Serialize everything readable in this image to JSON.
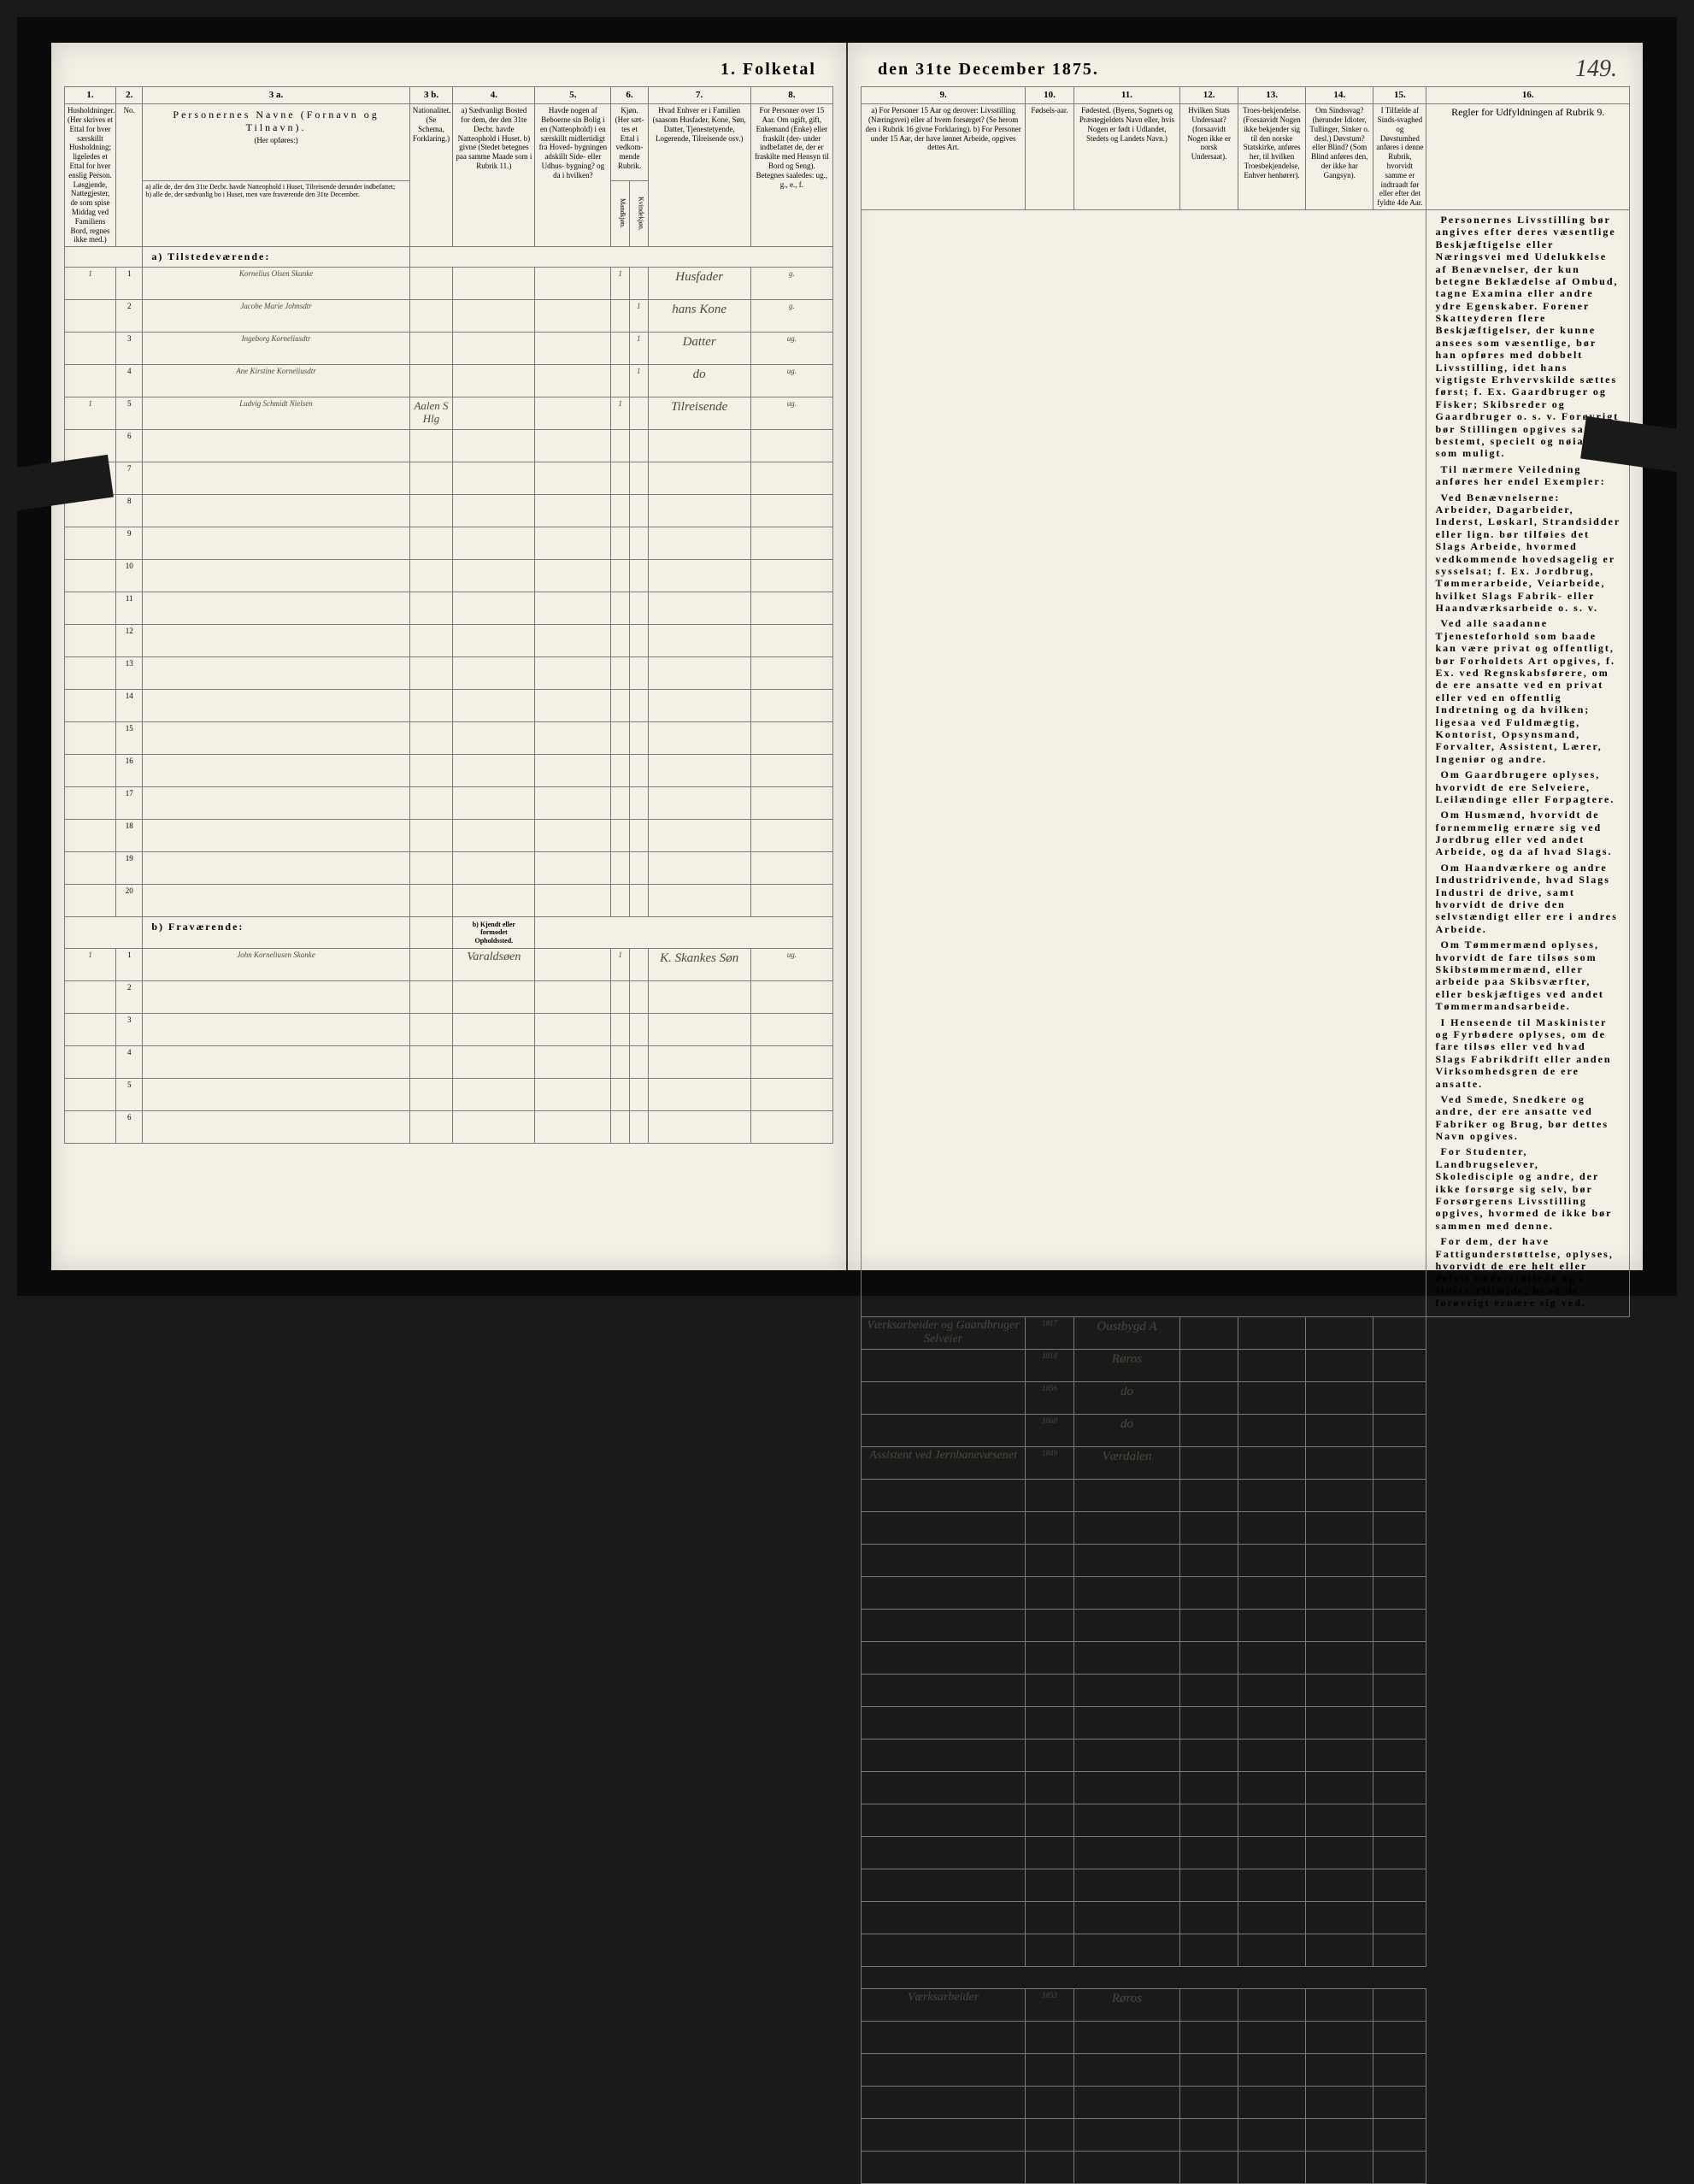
{
  "page_number": "149.",
  "main_title_left": "1. Folketal",
  "main_title_right": "den 31te December 1875.",
  "columns_left": [
    "1.",
    "2.",
    "3 a.",
    "3 b.",
    "4.",
    "5.",
    "6.",
    "7.",
    "8."
  ],
  "columns_right": [
    "9.",
    "10.",
    "11.",
    "12.",
    "13.",
    "14.",
    "15.",
    "16."
  ],
  "headers_left": {
    "c1": "Husholdninger.\n(Her skrives et Ettal for hver særskillt Husholdning; ligeledes et Ettal for hver enslig Person.\nLøsgjende, Nattegjester, de som spise Middag ved Familiens Bord, regnes ikke med.)",
    "c2": "No.",
    "c3a_top": "Personernes Navne (Fornavn og Tilnavn).",
    "c3a_mid": "(Her opføres:)",
    "c3a_a": "a) alle de, der den 31te Decbr. havde Natteophold i Huset, Tilreisende derunder indbefattet;",
    "c3a_b": "b) alle de, der sædvanlig bo i Huset, men vare fraværende den 31te December.",
    "c3b": "Nationalitet.\n(Se Schema, Forklaring.)",
    "c4": "a) Sædvanligt Bosted for dem, der den 31te Decbr. havde Natteophold i Huset.\nb) givne (Stedet betegnes paa samme Maade som i Rubrik 11.)",
    "c5": "Havde nogen af Beboerne sin Bolig i en (Natteophold) i en særskillt midlertidigt fra Hoved- bygningen adskillt Side- eller Udhus- bygning? og da i hvilken?",
    "c6": "Kjøn.\n(Her sæt- tes et Ettal i vedkom- mende Rubrik.",
    "c6a": "Mandkjøn.",
    "c6b": "Kvindekjøn.",
    "c7": "Hvad Enhver er i Familien\n(saasom Husfader, Kone, Søn, Datter, Tjenestetyende, Logerende, Tilreisende osv.)",
    "c8": "For Personer over 15 Aar.\nOm ugift, gift, Enkemand (Enke) eller fraskilt (der- under indbefattet de, der er fraskilte med Hensyn til Bord og Seng).\nBetegnes saaledes: ug., g., e., f."
  },
  "headers_right": {
    "c9": "a) For Personer 15 Aar og derover: Livsstilling (Næringsvei) eller af hvem forsørget? (Se herom den i Rubrik 16 givne Forklaring).\nb) For Personer under 15 Aar, der have lønnet Arbeide, opgives dettes Art.",
    "c10": "Fødsels-aar.",
    "c11": "Fødested.\n(Byens, Sognets og Præstegjeldets Navn eller, hvis Nogen er født i Udlandet, Stedets og Landets Navn.)",
    "c12": "Hvilken Stats Undersaat?\n(forsaavidt Nogen ikke er norsk Undersaat).",
    "c13": "Troes-bekjendelse.\n(Forsaavidt Nogen ikke bekjender sig til den norske Statskirke, anføres her, til hvilken Troesbekjendelse, Enhver henhører).",
    "c14": "Om Sindssvag? (herunder Idioter, Tullinger, Sinker o. desl.)\nDøvstum? eller Blind?\n(Som Blind anføres den, der ikke har Gangsyn).",
    "c15": "I Tilfælde af Sinds-svaghed og Døvstumhed anføres i denne Rubrik, hvorvidt samme er indtraadt før eller efter det fyldte 4de Aar.",
    "c16": "Regler for Udfyldningen af Rubrik 9."
  },
  "section_a": "a)  Tilstedeværende:",
  "section_b": "b)  Fraværende:",
  "section_b_col4": "b) Kjendt eller formodet Opholdssted.",
  "rows_a": [
    {
      "n": "1",
      "hh": "1",
      "name": "Kornelius Olsen Skanke",
      "nat": "",
      "res": "",
      "bld": "",
      "mk": "1",
      "kk": "",
      "fam": "Husfader",
      "stat": "g.",
      "occ": "Værksarbeider og Gaardbruger Selveier",
      "yr": "1817",
      "place": "Oustbygd A"
    },
    {
      "n": "2",
      "hh": "",
      "name": "Jacobe Marie Johnsdtr",
      "nat": "",
      "res": "",
      "bld": "",
      "mk": "",
      "kk": "1",
      "fam": "hans Kone",
      "stat": "g.",
      "occ": "",
      "yr": "1818",
      "place": "Røros"
    },
    {
      "n": "3",
      "hh": "",
      "name": "Ingeborg Korneliusdtr",
      "nat": "",
      "res": "",
      "bld": "",
      "mk": "",
      "kk": "1",
      "fam": "Datter",
      "stat": "ug.",
      "occ": "",
      "yr": "1856",
      "place": "do"
    },
    {
      "n": "4",
      "hh": "",
      "name": "Ane Kirstine Korneliusdtr",
      "nat": "",
      "res": "",
      "bld": "",
      "mk": "",
      "kk": "1",
      "fam": "do",
      "stat": "ug.",
      "occ": "",
      "yr": "1860",
      "place": "do"
    },
    {
      "n": "5",
      "hh": "1",
      "name": "Ludvig Schmidt Nielsen",
      "nat": "Aalen S Hlg",
      "res": "",
      "bld": "",
      "mk": "1",
      "kk": "",
      "fam": "Tilreisende",
      "stat": "ug.",
      "occ": "Assistent ved Jernbanevæsenet",
      "yr": "1849",
      "place": "Værdalen"
    }
  ],
  "empty_a": [
    "6",
    "7",
    "8",
    "9",
    "10",
    "11",
    "12",
    "13",
    "14",
    "15",
    "16",
    "17",
    "18",
    "19",
    "20"
  ],
  "rows_b": [
    {
      "n": "1",
      "hh": "1",
      "name": "John Korneliusen Skanke",
      "nat": "",
      "res": "Varaldsøen",
      "bld": "",
      "mk": "1",
      "kk": "",
      "fam": "K. Skankes Søn",
      "stat": "ug.",
      "occ": "Værksarbeider",
      "yr": "1853",
      "place": "Røros"
    }
  ],
  "empty_b": [
    "2",
    "3",
    "4",
    "5",
    "6"
  ],
  "rules_text": [
    "Personernes Livsstilling bør angives efter deres væsentlige Beskjæftigelse eller Næringsvei med Udelukkelse af Benævnelser, der kun betegne Beklædelse af Ombud, tagne Examina eller andre ydre Egenskaber. Forener Skatteyderen flere Beskjæftigelser, der kunne ansees som væsentlige, bør han opføres med <b>dobbelt Livsstilling</b>, idet hans vigtigste Erhvervskilde sættes først; f. Ex. Gaardbruger og Fisker; Skibsreder og Gaardbruger o. s. v. Forøvrigt bør Stillingen opgives saa <b>bestemt, specielt og nøiagtigt</b> som muligt.",
    "Til nærmere Veiledning anføres her endel Exempler:",
    "Ved Benævnelserne: <b>Arbeider, Dagarbeider, Inderst, Løskarl, Strandsidder</b> eller lign. bør tilføies det Slags Arbeide, hvormed vedkommende hovedsagelig er sysselsat; f. Ex. Jordbrug, Tømmerarbeide, Veiarbeide, hvilket Slags Fabrik- eller Haandværksarbeide o. s. v.",
    "Ved alle saadanne Tjenesteforhold som baade kan være privat og offentligt, bør <b>Forholdets Art opgives</b>, f. Ex. ved Regnskabsførere, om de ere ansatte ved en privat eller ved en offentlig Indretning og da hvilken; ligesaa ved Fuldmægtig, Kontorist, Opsynsmand, Forvalter, Assistent, Lærer, Ingeniør og andre.",
    "Om <b>Gaardbrugere</b> oplyses, hvorvidt de ere Selveiere, Leilændinge eller Forpagtere.",
    "Om <b>Husmænd</b>, hvorvidt de fornemmelig ernære sig ved Jordbrug eller ved andet Arbeide, og da af hvad Slags.",
    "Om <b>Haandværkere og andre Industridrivende</b>, hvad Slags Industri de drive, samt hvorvidt de drive den selvstændigt eller ere i andres Arbeide.",
    "Om <b>Tømmermænd</b> oplyses, hvorvidt de fare tilsøs som Skibstømmermænd, eller arbeide paa Skibsværfter, eller beskjæftiges ved andet Tømmermandsarbeide.",
    "I Henseende til <b>Maskinister og Fyrbødere</b> oplyses, om de fare tilsøs eller ved hvad Slags Fabrikdrift eller anden Virksomhedsgren de ere ansatte.",
    "Ved <b>Smede, Snedkere og andre</b>, der ere ansatte ved Fabriker og Brug, bør dettes Navn opgives.",
    "For <b>Studenter, Landbrugselever, Skoledisciple og andre</b>, der ikke forsørge sig selv, bør <b>Forsørgerens Livsstilling</b> opgives, hvormed de ikke bør sammen med denne.",
    "<b>For dem, der have Fattigunderstøttelse</b>, oplyses, hvorvidt de ere helt eller delvis understøttede og i sidste Tilfælde, hvad de forøvrigt ernære sig ved."
  ],
  "colors": {
    "paper": "#f4f0e6",
    "ink": "#3a3a3a",
    "hand": "#4a4a3a",
    "border": "#7a7a7a",
    "frame": "#0a0a0a"
  },
  "col_widths_left": [
    50,
    26,
    260,
    42,
    80,
    74,
    18,
    18,
    100,
    80
  ],
  "col_widths_right": [
    170,
    50,
    110,
    60,
    70,
    70,
    55,
    210
  ]
}
